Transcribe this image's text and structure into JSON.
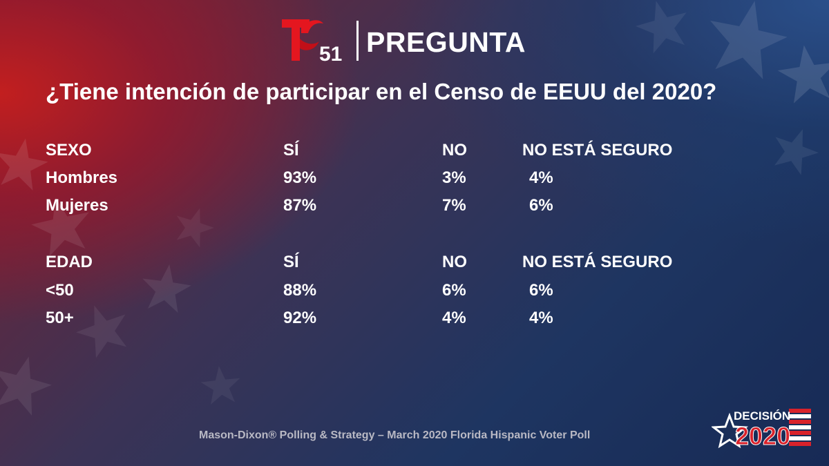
{
  "header": {
    "logo_number": "51",
    "title": "PREGUNTA"
  },
  "question": "¿Tiene intención de participar en el Censo de EEUU del 2020?",
  "tables": [
    {
      "header": [
        "SEXO",
        "SÍ",
        "NO",
        "NO ESTÁ SEGURO"
      ],
      "rows": [
        [
          "Hombres",
          "93%",
          "3%",
          "4%"
        ],
        [
          "Mujeres",
          "87%",
          "7%",
          "6%"
        ]
      ]
    },
    {
      "header": [
        "EDAD",
        "SÍ",
        "NO",
        "NO ESTÁ SEGURO"
      ],
      "rows": [
        [
          "<50",
          "88%",
          "6%",
          "6%"
        ],
        [
          "50+",
          "92%",
          "4%",
          "4%"
        ]
      ]
    }
  ],
  "source": "Mason-Dixon® Polling & Strategy – March 2020 Florida Hispanic Voter Poll",
  "badge": {
    "top": "DECISIÓN",
    "bottom": "2020"
  },
  "colors": {
    "brand_red": "#e4161f",
    "text": "#ffffff",
    "source_text": "#b9b9c4"
  },
  "icons": [
    "telemundo-logo-icon",
    "decision-2020-badge-icon",
    "star-icon"
  ]
}
